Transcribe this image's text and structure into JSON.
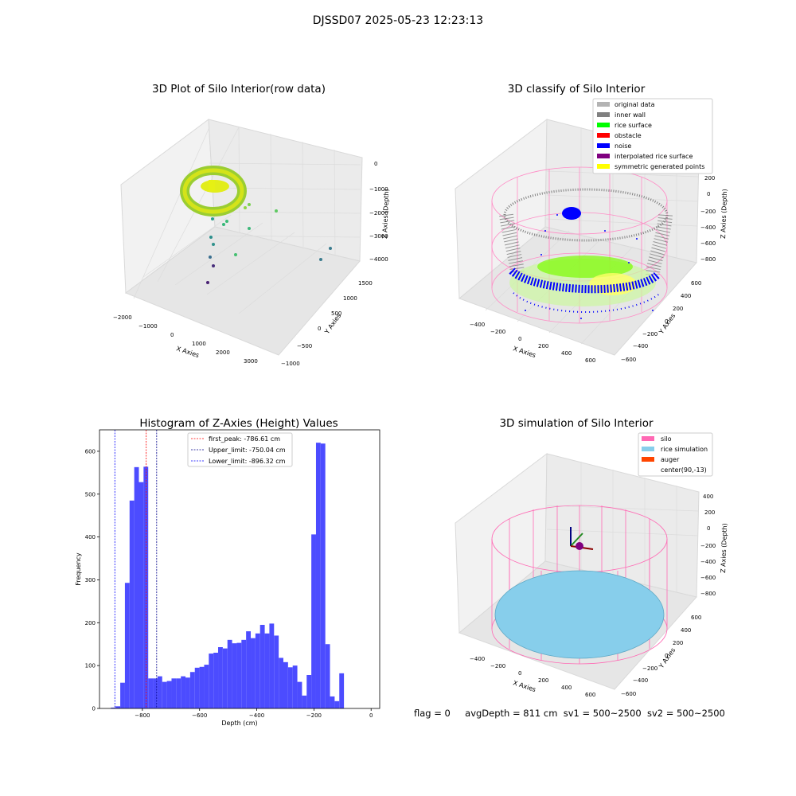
{
  "suptitle": "DJSSD07 2025-05-23 12:23:13",
  "footer": {
    "flag": "flag = 0",
    "avg": "avgDepth = 811 cm",
    "sv1": "sv1 = 500~2500",
    "sv2": "sv2 = 500~2500"
  },
  "colors": {
    "original": "#b3b3b3",
    "inner_wall": "#808080",
    "rice_surface": "#00ff00",
    "obstacle": "#ff0000",
    "noise": "#0000ff",
    "interp": "#800080",
    "symmetric": "#ffff00",
    "silo": "#ff69b4",
    "rice_sim": "#87ceeb",
    "auger": "#ff4500",
    "hist_bar": "#4c4cff"
  },
  "chart_data": [
    {
      "type": "scatter",
      "title": "3D Plot of Silo Interior(row data)",
      "xlabel": "X Axies",
      "ylabel": "Y Axies",
      "zlabel": "Z Axies (Depth)",
      "x_ticks": [
        "−2000",
        "−1000",
        "0",
        "1000",
        "2000",
        "3000"
      ],
      "y_ticks": [
        "−1000",
        "−500",
        "0",
        "500",
        "1000",
        "1500"
      ],
      "z_ticks": [
        "0",
        "−1000",
        "−2000",
        "−3000",
        "−4000"
      ]
    },
    {
      "type": "scatter",
      "title": "3D classify of Silo Interior",
      "xlabel": "X Axies",
      "ylabel": "Y Axies",
      "zlabel": "Z Axies (Depth)",
      "x_ticks": [
        "−400",
        "−200",
        "0",
        "200",
        "400",
        "600"
      ],
      "y_ticks": [
        "−600",
        "−400",
        "−200",
        "0",
        "200",
        "400",
        "600"
      ],
      "z_ticks": [
        "200",
        "0",
        "−200",
        "−400",
        "−600",
        "−800"
      ],
      "legend": [
        "original data",
        "inner wall",
        "rice surface",
        "obstacle",
        "noise",
        "interpolated rice surface",
        "symmetric generated points"
      ]
    },
    {
      "type": "bar",
      "title": "Histogram of Z-Axies (Height) Values",
      "xlabel": "Depth (cm)",
      "ylabel": "Frequency",
      "xlim": [
        -950,
        30
      ],
      "ylim": [
        0,
        650
      ],
      "x_ticks": [
        -800,
        -600,
        -400,
        -200,
        0
      ],
      "x_tick_labels": [
        "−800",
        "−600",
        "−400",
        "−200",
        "0"
      ],
      "y_ticks": [
        0,
        100,
        200,
        300,
        400,
        500,
        600
      ],
      "bin_start": -910,
      "bin_width": 16.3,
      "values": [
        2,
        5,
        60,
        293,
        485,
        563,
        528,
        564,
        70,
        70,
        75,
        62,
        64,
        70,
        70,
        75,
        72,
        85,
        95,
        97,
        102,
        128,
        130,
        143,
        140,
        160,
        152,
        153,
        160,
        180,
        164,
        175,
        195,
        175,
        198,
        170,
        118,
        108,
        96,
        100,
        62,
        30,
        78,
        406,
        620,
        618,
        150,
        28,
        17,
        82
      ],
      "vlines": [
        {
          "x": -786.61,
          "label": "first_peak: -786.61 cm",
          "color": "#ff0000"
        },
        {
          "x": -750.04,
          "label": "Upper_limit: -750.04 cm",
          "color": "#00008b"
        },
        {
          "x": -896.32,
          "label": "Lower_limit: -896.32 cm",
          "color": "#0000ff"
        }
      ]
    },
    {
      "type": "scatter",
      "title": "3D simulation of Silo Interior",
      "xlabel": "X Axies",
      "ylabel": "Y Axies",
      "zlabel": "Z Axies (Depth)",
      "x_ticks": [
        "−400",
        "−200",
        "0",
        "200",
        "400",
        "600"
      ],
      "y_ticks": [
        "−600",
        "−400",
        "−200",
        "0",
        "200",
        "400",
        "600"
      ],
      "z_ticks": [
        "400",
        "200",
        "0",
        "−200",
        "−400",
        "−600",
        "−800"
      ],
      "legend": [
        "silo",
        "rice simulation",
        "auger",
        "center(90,-13)"
      ]
    }
  ]
}
